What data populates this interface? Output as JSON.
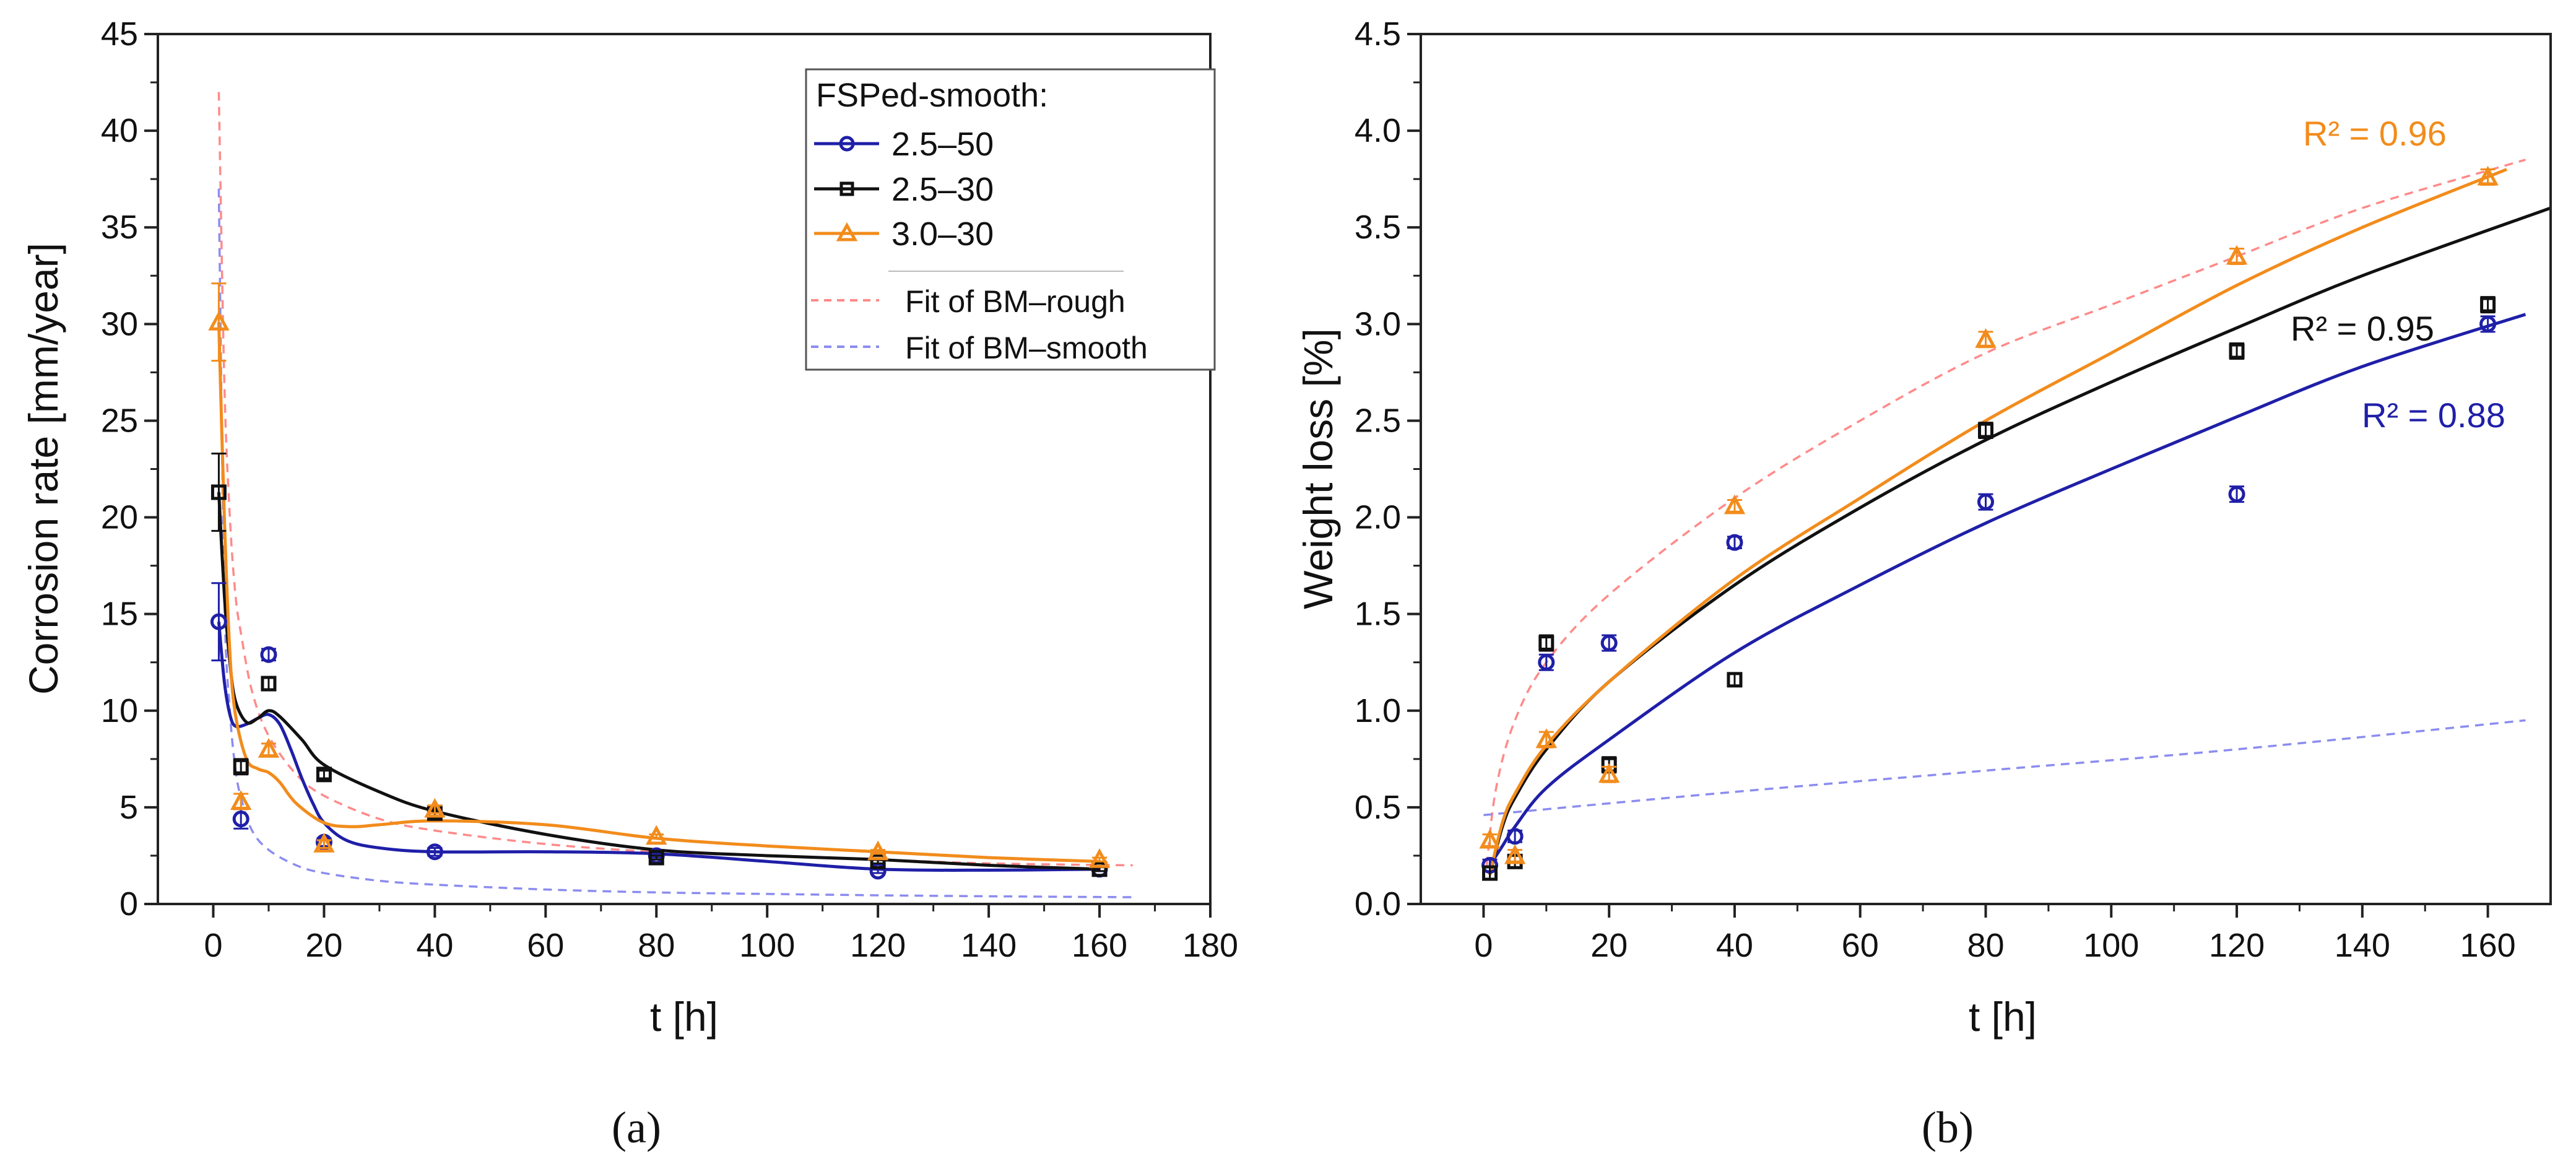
{
  "chart_data": [
    {
      "type": "scatter",
      "panel": "a",
      "panel_label": "(a)",
      "xlabel": "t [h]",
      "ylabel": "Corrosion rate [mm/year]",
      "xlim": [
        -10,
        180
      ],
      "ylim": [
        0,
        45
      ],
      "xticks": [
        "0",
        "20",
        "40",
        "60",
        "80",
        "100",
        "120",
        "140",
        "160",
        "180"
      ],
      "yticks": [
        "0",
        "5",
        "10",
        "15",
        "20",
        "25",
        "30",
        "35",
        "40",
        "45"
      ],
      "legend_title": "FSPed-smooth:",
      "legend_position": "top-right",
      "series": [
        {
          "name": "2.5–50",
          "color": "#1f1fa8",
          "marker": "circle",
          "x": [
            1,
            5,
            10,
            20,
            40,
            80,
            120,
            160
          ],
          "y": [
            14.6,
            4.4,
            12.9,
            3.2,
            2.7,
            2.5,
            1.7,
            1.8
          ],
          "err": [
            2.0,
            0.5,
            0.3,
            0.2,
            0.2,
            0.1,
            0.1,
            0.1
          ],
          "fit": [
            [
              1,
              14.6
            ],
            [
              2,
              11.5
            ],
            [
              3,
              9.8
            ],
            [
              4,
              9.2
            ],
            [
              6,
              9.3
            ],
            [
              8,
              9.6
            ],
            [
              10,
              9.8
            ],
            [
              12,
              9.3
            ],
            [
              14,
              8.0
            ],
            [
              16,
              6.5
            ],
            [
              18,
              5.2
            ],
            [
              20,
              4.2
            ],
            [
              24,
              3.3
            ],
            [
              30,
              2.9
            ],
            [
              40,
              2.7
            ],
            [
              60,
              2.7
            ],
            [
              80,
              2.6
            ],
            [
              100,
              2.2
            ],
            [
              120,
              1.8
            ],
            [
              140,
              1.75
            ],
            [
              160,
              1.8
            ]
          ]
        },
        {
          "name": "2.5–30",
          "color": "#111111",
          "marker": "square",
          "x": [
            1,
            5,
            10,
            20,
            40,
            80,
            120,
            160
          ],
          "y": [
            21.3,
            7.1,
            11.4,
            6.7,
            4.7,
            2.4,
            2.2,
            1.8
          ],
          "err": [
            2.0,
            0.4,
            0.3,
            0.2,
            0.2,
            0.1,
            0.1,
            0.1
          ],
          "fit": [
            [
              1,
              21.3
            ],
            [
              2,
              16
            ],
            [
              3,
              12.5
            ],
            [
              4,
              10.5
            ],
            [
              6,
              9.4
            ],
            [
              8,
              9.6
            ],
            [
              10,
              10.0
            ],
            [
              12,
              9.7
            ],
            [
              16,
              8.5
            ],
            [
              20,
              7.2
            ],
            [
              30,
              5.8
            ],
            [
              40,
              4.8
            ],
            [
              60,
              3.6
            ],
            [
              80,
              2.8
            ],
            [
              100,
              2.5
            ],
            [
              120,
              2.3
            ],
            [
              140,
              2.0
            ],
            [
              160,
              1.8
            ]
          ]
        },
        {
          "name": "3.0–30",
          "color": "#f28c1c",
          "marker": "triangle",
          "x": [
            1,
            5,
            10,
            20,
            40,
            80,
            120,
            160
          ],
          "y": [
            30.1,
            5.3,
            8.0,
            3.1,
            4.9,
            3.5,
            2.7,
            2.3
          ],
          "err": [
            2.0,
            0.4,
            0.3,
            0.2,
            0.2,
            0.1,
            0.1,
            0.1
          ],
          "fit": [
            [
              1,
              30.1
            ],
            [
              2,
              20
            ],
            [
              3,
              13
            ],
            [
              4,
              9.8
            ],
            [
              6,
              7.5
            ],
            [
              8,
              7.0
            ],
            [
              10,
              6.8
            ],
            [
              12,
              6.3
            ],
            [
              15,
              5.2
            ],
            [
              20,
              4.2
            ],
            [
              25,
              4.0
            ],
            [
              30,
              4.1
            ],
            [
              40,
              4.3
            ],
            [
              60,
              4.1
            ],
            [
              80,
              3.4
            ],
            [
              100,
              3.0
            ],
            [
              120,
              2.7
            ],
            [
              140,
              2.4
            ],
            [
              160,
              2.2
            ]
          ]
        },
        {
          "name": "Fit of BM–rough",
          "color": "#ff8a8a",
          "marker": "none",
          "dashed": true,
          "fit": [
            [
              1,
              42
            ],
            [
              2,
              27
            ],
            [
              3,
              20
            ],
            [
              4,
              16
            ],
            [
              5,
              14
            ],
            [
              7,
              11
            ],
            [
              10,
              8.7
            ],
            [
              15,
              6.7
            ],
            [
              20,
              5.6
            ],
            [
              30,
              4.4
            ],
            [
              40,
              3.8
            ],
            [
              60,
              3.1
            ],
            [
              80,
              2.7
            ],
            [
              100,
              2.5
            ],
            [
              120,
              2.3
            ],
            [
              140,
              2.1
            ],
            [
              166,
              2.0
            ]
          ]
        },
        {
          "name": "Fit of BM–smooth",
          "color": "#8c8cf0",
          "marker": "none",
          "dashed": true,
          "fit": [
            [
              1,
              37
            ],
            [
              2,
              16
            ],
            [
              3,
              10
            ],
            [
              4,
              7
            ],
            [
              5,
              5.5
            ],
            [
              7,
              3.8
            ],
            [
              10,
              2.8
            ],
            [
              15,
              2.0
            ],
            [
              20,
              1.6
            ],
            [
              30,
              1.2
            ],
            [
              40,
              1.0
            ],
            [
              60,
              0.75
            ],
            [
              80,
              0.6
            ],
            [
              100,
              0.52
            ],
            [
              120,
              0.45
            ],
            [
              140,
              0.4
            ],
            [
              166,
              0.35
            ]
          ]
        }
      ]
    },
    {
      "type": "scatter",
      "panel": "b",
      "panel_label": "(b)",
      "xlabel": "t [h]",
      "ylabel": "Weight loss [%]",
      "xlim": [
        -10,
        170
      ],
      "ylim": [
        0,
        4.5
      ],
      "xticks": [
        "0",
        "20",
        "40",
        "60",
        "80",
        "100",
        "120",
        "140",
        "160"
      ],
      "yticks": [
        "0.0",
        "0.5",
        "1.0",
        "1.5",
        "2.0",
        "2.5",
        "3.0",
        "3.5",
        "4.0",
        "4.5"
      ],
      "series": [
        {
          "name": "2.5–50",
          "color": "#1f1fa8",
          "marker": "circle",
          "x": [
            1,
            5,
            10,
            20,
            40,
            80,
            120,
            160
          ],
          "y": [
            0.2,
            0.35,
            1.25,
            1.35,
            1.87,
            2.08,
            2.12,
            3.0
          ],
          "err": [
            0.03,
            0.03,
            0.04,
            0.04,
            0.03,
            0.04,
            0.04,
            0.04
          ],
          "fit": [
            [
              1,
              0.2
            ],
            [
              3,
              0.3
            ],
            [
              5,
              0.4
            ],
            [
              10,
              0.6
            ],
            [
              20,
              0.85
            ],
            [
              40,
              1.3
            ],
            [
              60,
              1.65
            ],
            [
              80,
              1.97
            ],
            [
              100,
              2.25
            ],
            [
              120,
              2.52
            ],
            [
              140,
              2.78
            ],
            [
              166,
              3.05
            ]
          ]
        },
        {
          "name": "2.5–30",
          "color": "#111111",
          "marker": "square",
          "x": [
            1,
            5,
            10,
            20,
            40,
            80,
            120,
            160
          ],
          "y": [
            0.16,
            0.22,
            1.35,
            0.72,
            1.16,
            2.45,
            2.86,
            3.1
          ],
          "err": [
            0.03,
            0.03,
            0.04,
            0.04,
            0.03,
            0.04,
            0.04,
            0.04
          ],
          "fit": [
            [
              1,
              0.15
            ],
            [
              3,
              0.4
            ],
            [
              5,
              0.55
            ],
            [
              10,
              0.8
            ],
            [
              20,
              1.15
            ],
            [
              40,
              1.65
            ],
            [
              60,
              2.05
            ],
            [
              80,
              2.4
            ],
            [
              100,
              2.7
            ],
            [
              120,
              2.98
            ],
            [
              140,
              3.25
            ],
            [
              170,
              3.6
            ]
          ]
        },
        {
          "name": "3.0–30",
          "color": "#f28c1c",
          "marker": "triangle",
          "x": [
            1,
            5,
            10,
            20,
            40,
            80,
            120,
            160
          ],
          "y": [
            0.33,
            0.25,
            0.85,
            0.67,
            2.06,
            2.92,
            3.35,
            3.76
          ],
          "err": [
            0.03,
            0.03,
            0.04,
            0.04,
            0.03,
            0.04,
            0.04,
            0.04
          ],
          "fit": [
            [
              1,
              0.15
            ],
            [
              3,
              0.42
            ],
            [
              5,
              0.57
            ],
            [
              10,
              0.82
            ],
            [
              20,
              1.15
            ],
            [
              40,
              1.68
            ],
            [
              60,
              2.1
            ],
            [
              80,
              2.5
            ],
            [
              100,
              2.85
            ],
            [
              120,
              3.2
            ],
            [
              140,
              3.5
            ],
            [
              163,
              3.8
            ]
          ]
        },
        {
          "name": "Fit of BM–rough",
          "color": "#ff8a8a",
          "marker": "none",
          "dashed": true,
          "fit": [
            [
              0.5,
              0.2
            ],
            [
              2,
              0.6
            ],
            [
              5,
              0.95
            ],
            [
              10,
              1.25
            ],
            [
              20,
              1.6
            ],
            [
              40,
              2.1
            ],
            [
              60,
              2.5
            ],
            [
              80,
              2.85
            ],
            [
              100,
              3.1
            ],
            [
              120,
              3.35
            ],
            [
              140,
              3.6
            ],
            [
              166,
              3.85
            ]
          ]
        },
        {
          "name": "Fit of BM–smooth",
          "color": "#8c8cf0",
          "marker": "none",
          "dashed": true,
          "fit": [
            [
              0,
              0.46
            ],
            [
              40,
              0.58
            ],
            [
              80,
              0.69
            ],
            [
              120,
              0.8
            ],
            [
              166,
              0.95
            ]
          ]
        }
      ],
      "annotations": [
        {
          "text": "R² = 0.96",
          "color": "#f28c1c"
        },
        {
          "text": "R² = 0.95",
          "color": "#111111"
        },
        {
          "text": "R² = 0.88",
          "color": "#1f1fa8"
        }
      ]
    }
  ]
}
